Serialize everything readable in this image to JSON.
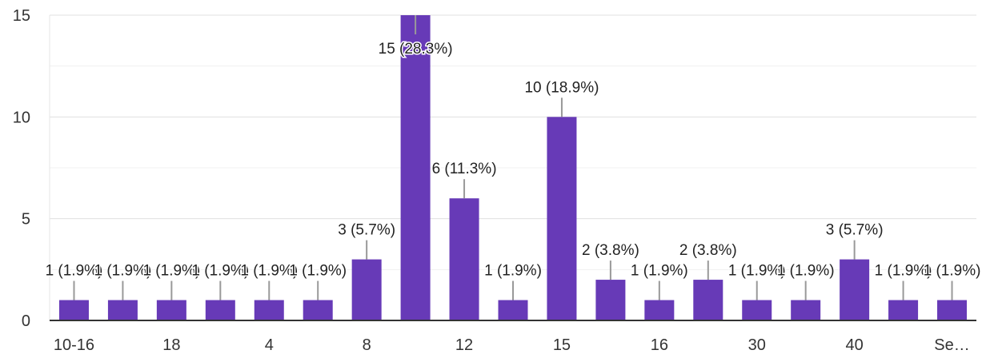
{
  "chart_data": {
    "type": "bar",
    "title": "",
    "xlabel": "",
    "ylabel": "",
    "ylim": [
      0,
      15
    ],
    "yticks": [
      0,
      5,
      10,
      15
    ],
    "grid": true,
    "bar_color": "#673ab7",
    "categories": [
      "10-16",
      "",
      "18",
      "",
      "4",
      "",
      "8",
      "",
      "12",
      "",
      "15",
      "",
      "16",
      "",
      "30",
      "",
      "40",
      "",
      "Se…"
    ],
    "values": [
      1,
      1,
      1,
      1,
      1,
      1,
      3,
      15,
      6,
      1,
      10,
      2,
      1,
      2,
      1,
      1,
      3,
      1,
      1
    ],
    "labels": [
      "1 (1.9%)",
      "1 (1.9%)",
      "1 (1.9%)",
      "1 (1.9%)",
      "1 (1.9%)",
      "1 (1.9%)",
      "3 (5.7%)",
      "15 (28.3%)",
      "6 (11.3%)",
      "1 (1.9%)",
      "10 (18.9%)",
      "2 (3.8%)",
      "1 (1.9%)",
      "2 (3.8%)",
      "1 (1.9%)",
      "1 (1.9%)",
      "3 (5.7%)",
      "1 (1.9%)",
      "1 (1.9%)"
    ]
  }
}
